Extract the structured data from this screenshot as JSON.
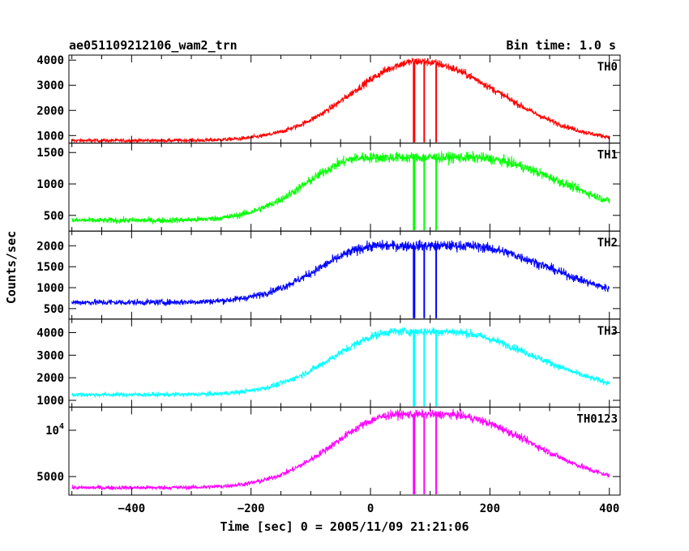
{
  "chart_data": {
    "type": "line",
    "title": "ae051109212106_wam2_trn",
    "bin_time_label": "Bin time: 1.0 s",
    "xlabel": "Time [sec] 0 = 2005/11/09 21:21:06",
    "ylabel": "Counts/sec",
    "xlim": [
      -505,
      418
    ],
    "x_ticks": [
      {
        "value": -400,
        "label": "−400"
      },
      {
        "value": -200,
        "label": "−200"
      },
      {
        "value": 0,
        "label": "0"
      },
      {
        "value": 200,
        "label": "200"
      },
      {
        "value": 400,
        "label": "400"
      }
    ],
    "x_range": [
      -500,
      400
    ],
    "gap_times": [
      73,
      90,
      110
    ],
    "grid": false,
    "series": [
      {
        "name": "TH0",
        "color": "#ff0000",
        "ylim": [
          700,
          4200
        ],
        "ticks": [
          {
            "value": 1000,
            "label": "1000"
          },
          {
            "value": 2000,
            "label": "2000"
          },
          {
            "value": 3000,
            "label": "3000"
          },
          {
            "value": 4000,
            "label": "4000"
          }
        ],
        "baseline": 800,
        "peak": 3950,
        "peak_time": 80,
        "rise_sigma": 110,
        "fall_sigma": 135,
        "plateau": 0,
        "noise": 110,
        "tail": 750
      },
      {
        "name": "TH1",
        "color": "#00ff00",
        "ylim": [
          250,
          1650
        ],
        "ticks": [
          {
            "value": 500,
            "label": "500"
          },
          {
            "value": 1000,
            "label": "1000"
          },
          {
            "value": 1500,
            "label": "1500"
          }
        ],
        "baseline": 420,
        "peak": 1420,
        "peak_time": 80,
        "rise_sigma": 95,
        "fall_sigma": 150,
        "plateau": 90,
        "noise": 55,
        "tail": 520
      },
      {
        "name": "TH2",
        "color": "#0000ff",
        "ylim": [
          250,
          2350
        ],
        "ticks": [
          {
            "value": 500,
            "label": "500"
          },
          {
            "value": 1000,
            "label": "1000"
          },
          {
            "value": 1500,
            "label": "1500"
          },
          {
            "value": 2000,
            "label": "2000"
          }
        ],
        "baseline": 650,
        "peak": 2000,
        "peak_time": 85,
        "rise_sigma": 100,
        "fall_sigma": 145,
        "plateau": 70,
        "noise": 80,
        "tail": 820
      },
      {
        "name": "TH3",
        "color": "#00ffff",
        "ylim": [
          700,
          4600
        ],
        "ticks": [
          {
            "value": 1000,
            "label": "1000"
          },
          {
            "value": 2000,
            "label": "2000"
          },
          {
            "value": 3000,
            "label": "3000"
          },
          {
            "value": 4000,
            "label": "4000"
          }
        ],
        "baseline": 1250,
        "peak": 4050,
        "peak_time": 85,
        "rise_sigma": 105,
        "fall_sigma": 150,
        "plateau": 40,
        "noise": 120,
        "tail": 1650
      },
      {
        "name": "TH0123",
        "color": "#ff00ff",
        "ylim": [
          3000,
          12500
        ],
        "ticks": [
          {
            "value": 5000,
            "label": "5000"
          },
          {
            "value": 10000,
            "label": "10",
            "sup": "4"
          }
        ],
        "baseline": 3800,
        "peak": 11700,
        "peak_time": 85,
        "rise_sigma": 105,
        "fall_sigma": 145,
        "plateau": 40,
        "noise": 300,
        "tail": 4900
      }
    ]
  }
}
